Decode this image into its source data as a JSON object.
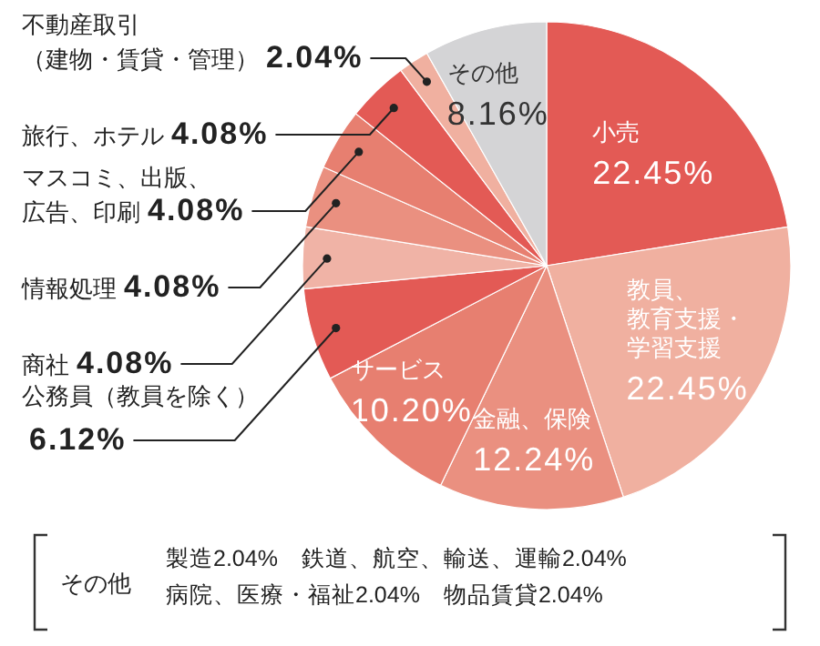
{
  "chart_data": {
    "type": "pie",
    "categories": [
      "小売",
      "教員、教育支援・学習支援",
      "金融、保険",
      "サービス",
      "公務員（教員を除く）",
      "商社",
      "情報処理",
      "マスコミ、出版、広告、印刷",
      "旅行、ホテル",
      "不動産取引（建物・賃貸・管理）",
      "その他"
    ],
    "values": [
      22.45,
      22.45,
      12.24,
      10.2,
      6.12,
      4.08,
      4.08,
      4.08,
      4.08,
      2.04,
      8.16
    ],
    "value_labels": [
      "22.45%",
      "22.45%",
      "12.24%",
      "10.20%",
      "6.12%",
      "4.08%",
      "4.08%",
      "4.08%",
      "4.08%",
      "2.04%",
      "8.16%"
    ],
    "colors": [
      "#e35a55",
      "#f0b0a0",
      "#ea9080",
      "#e77f70",
      "#e35a55",
      "#f0b3a6",
      "#ea9080",
      "#e77f70",
      "#e35a55",
      "#f0b0a0",
      "#d4d4d6"
    ],
    "annotations": [
      "その他",
      "製造2.04%　鉄道、航空、輸送、運輸2.04%",
      "病院、医療・福祉2.04%　物品賃貸2.04%"
    ],
    "legend": false
  }
}
